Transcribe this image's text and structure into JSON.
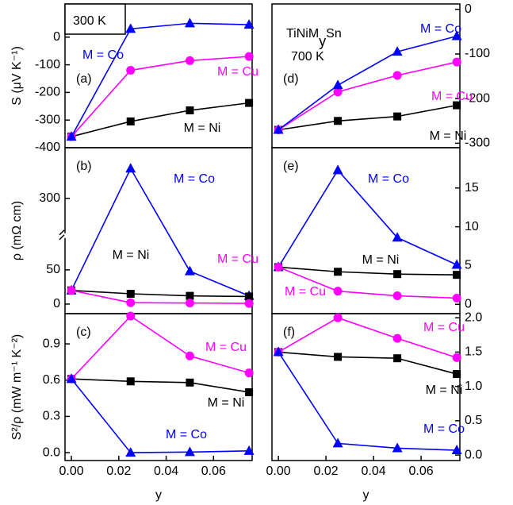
{
  "chart_data": [
    {
      "type": "line",
      "panel_label": "(a)",
      "annotation": "300 K",
      "ylabel": "S (μV K⁻¹)",
      "yaxis": "left",
      "x": [
        0,
        0.025,
        0.05,
        0.075
      ],
      "xlim": [
        -0.0027,
        0.0763
      ],
      "ylim": [
        -400,
        120
      ],
      "yticks": [
        -400,
        -300,
        -200,
        -100,
        0
      ],
      "series": [
        {
          "name": "M = Ni",
          "color": "#000000",
          "marker": "square",
          "values": [
            -360,
            -305,
            -265,
            -238
          ]
        },
        {
          "name": "M = Cu",
          "color": "#ff00ff",
          "marker": "circle",
          "values": [
            -360,
            -120,
            -85,
            -70
          ]
        },
        {
          "name": "M = Co",
          "color": "#0000ff",
          "marker": "triangle",
          "values": [
            -360,
            30,
            50,
            45
          ]
        }
      ]
    },
    {
      "type": "line",
      "panel_label": "(d)",
      "annotation": "700 K",
      "title": "TiNiM",
      "title_subscript": "y",
      "title_end": "Sn",
      "yaxis": "right",
      "x": [
        0,
        0.025,
        0.05,
        0.075
      ],
      "xlim": [
        -0.0027,
        0.0763
      ],
      "ylim": [
        -310,
        12
      ],
      "yticks": [
        -300,
        -200,
        -100,
        0
      ],
      "series": [
        {
          "name": "M = Ni",
          "color": "#000000",
          "marker": "square",
          "values": [
            -270,
            -250,
            -240,
            -215
          ]
        },
        {
          "name": "M = Cu",
          "color": "#ff00ff",
          "marker": "circle",
          "values": [
            -270,
            -185,
            -148,
            -118
          ]
        },
        {
          "name": "M = Co",
          "color": "#0000ff",
          "marker": "triangle",
          "values": [
            -270,
            -170,
            -95,
            -60
          ]
        }
      ]
    },
    {
      "type": "line",
      "panel_label": "(b)",
      "ylabel": "ρ (mΩ cm)",
      "yaxis": "left",
      "x": [
        0,
        0.025,
        0.05,
        0.075
      ],
      "xlim": [
        -0.0027,
        0.0763
      ],
      "ylim": [
        -14,
        436
      ],
      "ybreak": [
        100,
        200
      ],
      "yticks": [
        0,
        50,
        300
      ],
      "series": [
        {
          "name": "M = Co",
          "color": "#0000ff",
          "marker": "triangle",
          "values": [
            20,
            380,
            48,
            12
          ]
        },
        {
          "name": "M = Ni",
          "color": "#000000",
          "marker": "square",
          "values": [
            20,
            15,
            12,
            11
          ]
        },
        {
          "name": "M = Cu",
          "color": "#ff00ff",
          "marker": "circle",
          "values": [
            20,
            2,
            1.5,
            1
          ]
        }
      ]
    },
    {
      "type": "line",
      "panel_label": "(e)",
      "yaxis": "right",
      "x": [
        0,
        0.025,
        0.05,
        0.075
      ],
      "xlim": [
        -0.0027,
        0.0763
      ],
      "ylim": [
        -1.2,
        20.2
      ],
      "yticks": [
        0,
        5,
        10,
        15
      ],
      "series": [
        {
          "name": "M = Co",
          "color": "#0000ff",
          "marker": "triangle",
          "values": [
            4.8,
            17.3,
            8.6,
            5.1
          ]
        },
        {
          "name": "M = Ni",
          "color": "#000000",
          "marker": "square",
          "values": [
            4.8,
            4.2,
            3.9,
            3.8
          ]
        },
        {
          "name": "M = Cu",
          "color": "#ff00ff",
          "marker": "circle",
          "values": [
            4.8,
            1.7,
            1.1,
            0.8
          ]
        }
      ]
    },
    {
      "type": "line",
      "panel_label": "(c)",
      "ylabel": "S²/ρ (mW m⁻¹ K⁻²)",
      "xlabel": "y",
      "yaxis": "left",
      "x": [
        0,
        0.025,
        0.05,
        0.075
      ],
      "xlim": [
        -0.0027,
        0.0763
      ],
      "ylim": [
        -0.065,
        1.15
      ],
      "yticks": [
        {
          "value": 0,
          "label": "0.0"
        },
        {
          "value": 0.3,
          "label": "0.3"
        },
        {
          "value": 0.6,
          "label": "0.6"
        },
        {
          "value": 0.9,
          "label": "0.9"
        }
      ],
      "xticks": [
        {
          "value": 0,
          "label": "0.00"
        },
        {
          "value": 0.02,
          "label": "0.02"
        },
        {
          "value": 0.04,
          "label": "0.04"
        },
        {
          "value": 0.06,
          "label": "0.06"
        }
      ],
      "series": [
        {
          "name": "M = Ni",
          "color": "#000000",
          "marker": "square",
          "values": [
            0.61,
            0.59,
            0.58,
            0.5
          ]
        },
        {
          "name": "M = Cu",
          "color": "#ff00ff",
          "marker": "circle",
          "values": [
            0.61,
            1.13,
            0.8,
            0.66
          ]
        },
        {
          "name": "M = Co",
          "color": "#0000ff",
          "marker": "triangle",
          "values": [
            0.61,
            0,
            0.005,
            0.015
          ]
        }
      ]
    },
    {
      "type": "line",
      "panel_label": "(f)",
      "xlabel": "y",
      "yaxis": "right",
      "x": [
        0,
        0.025,
        0.05,
        0.075
      ],
      "xlim": [
        -0.0027,
        0.0763
      ],
      "ylim": [
        -0.08,
        2.06
      ],
      "yticks": [
        {
          "value": 0,
          "label": "0.0"
        },
        {
          "value": 0.5,
          "label": "0.5"
        },
        {
          "value": 1,
          "label": "1.0"
        },
        {
          "value": 1.5,
          "label": "1.5"
        },
        {
          "value": 2,
          "label": "2.0"
        }
      ],
      "xticks": [
        {
          "value": 0,
          "label": "0.00"
        },
        {
          "value": 0.02,
          "label": "0.02"
        },
        {
          "value": 0.04,
          "label": "0.04"
        },
        {
          "value": 0.06,
          "label": "0.06"
        }
      ],
      "series": [
        {
          "name": "M = Ni",
          "color": "#000000",
          "marker": "square",
          "values": [
            1.5,
            1.43,
            1.41,
            1.18
          ]
        },
        {
          "name": "M = Cu",
          "color": "#ff00ff",
          "marker": "circle",
          "values": [
            1.5,
            2.0,
            1.7,
            1.42
          ]
        },
        {
          "name": "M = Co",
          "color": "#0000ff",
          "marker": "triangle",
          "values": [
            1.5,
            0.17,
            0.1,
            0.07
          ]
        }
      ]
    }
  ]
}
